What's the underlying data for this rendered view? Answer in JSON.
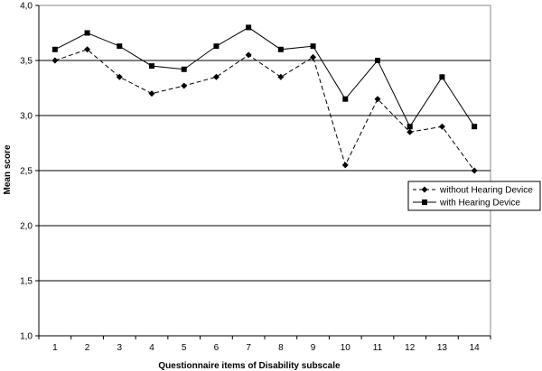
{
  "chart_data": {
    "type": "line",
    "title": "",
    "xlabel": "Questionnaire items of Disability subscale",
    "ylabel": "Mean score",
    "categories": [
      "1",
      "2",
      "3",
      "4",
      "5",
      "6",
      "7",
      "8",
      "9",
      "10",
      "11",
      "12",
      "13",
      "14"
    ],
    "ylim": [
      1.0,
      4.0
    ],
    "yticks": [
      "1,0",
      "1,5",
      "2,0",
      "2,5",
      "3,0",
      "3,5",
      "4,0"
    ],
    "grid": "horizontal",
    "legend_position": "right",
    "series": [
      {
        "name": "without Hearing Device",
        "marker": "diamond",
        "line_style": "dashed",
        "color": "#000000",
        "values": [
          3.5,
          3.6,
          3.35,
          3.2,
          3.27,
          3.35,
          3.55,
          3.35,
          3.53,
          2.55,
          3.15,
          2.85,
          2.9,
          2.5
        ]
      },
      {
        "name": "with Hearing Device",
        "marker": "square",
        "line_style": "solid",
        "color": "#000000",
        "values": [
          3.6,
          3.75,
          3.63,
          3.45,
          3.42,
          3.63,
          3.8,
          3.6,
          3.63,
          3.15,
          3.5,
          2.9,
          3.35,
          2.9
        ]
      }
    ]
  }
}
